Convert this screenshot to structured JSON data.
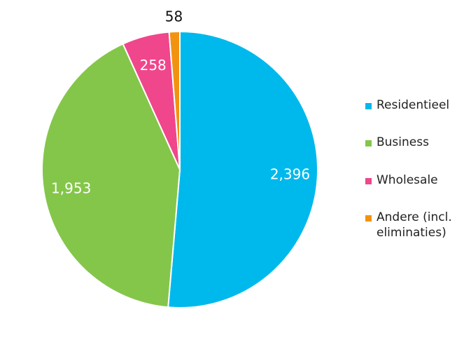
{
  "chart_data": {
    "type": "pie",
    "title": "",
    "slices": [
      {
        "label": "Residentieel",
        "value": 2396,
        "display": "2,396",
        "color": "#00B9EC",
        "label_color": "#ffffff"
      },
      {
        "label": "Business",
        "value": 1953,
        "display": "1,953",
        "color": "#84C64A",
        "label_color": "#ffffff"
      },
      {
        "label": "Wholesale",
        "value": 258,
        "display": "258",
        "color": "#F0468B",
        "label_color": "#ffffff"
      },
      {
        "label": "Andere (incl. eliminaties)",
        "value": 58,
        "display": "58",
        "color": "#F2930F",
        "label_color": "#111111"
      }
    ],
    "start": "top",
    "direction": "clockwise",
    "legend_position": "right"
  },
  "legend": {
    "items": [
      {
        "label": "Residentieel",
        "color": "#00B9EC"
      },
      {
        "label": "Business",
        "color": "#84C64A"
      },
      {
        "label": "Wholesale",
        "color": "#F0468B"
      },
      {
        "label": "Andere (incl. eliminaties)",
        "color": "#F2930F"
      }
    ]
  }
}
